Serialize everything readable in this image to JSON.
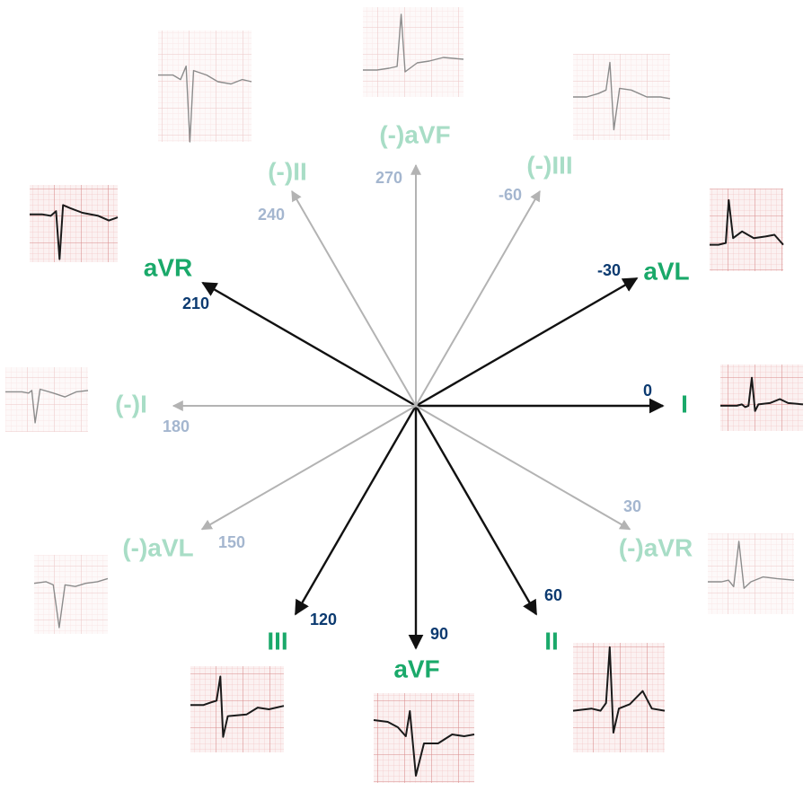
{
  "center_label": "",
  "colors": {
    "positive_arrow": "#111111",
    "negative_arrow": "#b3b3b3",
    "positive_name": "#1aa96a",
    "negative_name": "#a8ddc6",
    "positive_degree": "#0b3a70",
    "negative_degree": "#a4b6cf",
    "ecg_grid_minor": "#f2c7c7",
    "ecg_grid_major": "#d98b8b",
    "ecg_paper": "#fbf1f1"
  },
  "leads": [
    {
      "id": "I",
      "name": "I",
      "degree": "0",
      "angle": 0,
      "positive": true
    },
    {
      "id": "II",
      "name": "II",
      "degree": "60",
      "angle": 60,
      "positive": true
    },
    {
      "id": "III",
      "name": "III",
      "degree": "120",
      "angle": 120,
      "positive": true
    },
    {
      "id": "aVF",
      "name": "aVF",
      "degree": "90",
      "angle": 90,
      "positive": true
    },
    {
      "id": "aVL",
      "name": "aVL",
      "degree": "-30",
      "angle": -30,
      "positive": true
    },
    {
      "id": "aVR",
      "name": "aVR",
      "degree": "210",
      "angle": 210,
      "positive": true
    },
    {
      "id": "neg-I",
      "name": "(-)I",
      "degree": "180",
      "angle": 180,
      "positive": false
    },
    {
      "id": "neg-II",
      "name": "(-)II",
      "degree": "240",
      "angle": 240,
      "positive": false
    },
    {
      "id": "neg-III",
      "name": "(-)III",
      "degree": "-60",
      "angle": -60,
      "positive": false
    },
    {
      "id": "neg-aVF",
      "name": "(-)aVF",
      "degree": "270",
      "angle": 270,
      "positive": false
    },
    {
      "id": "neg-aVL",
      "name": "(-)aVL",
      "degree": "150",
      "angle": 150,
      "positive": false
    },
    {
      "id": "neg-aVR",
      "name": "(-)aVR",
      "degree": "30",
      "angle": 30,
      "positive": false
    }
  ]
}
